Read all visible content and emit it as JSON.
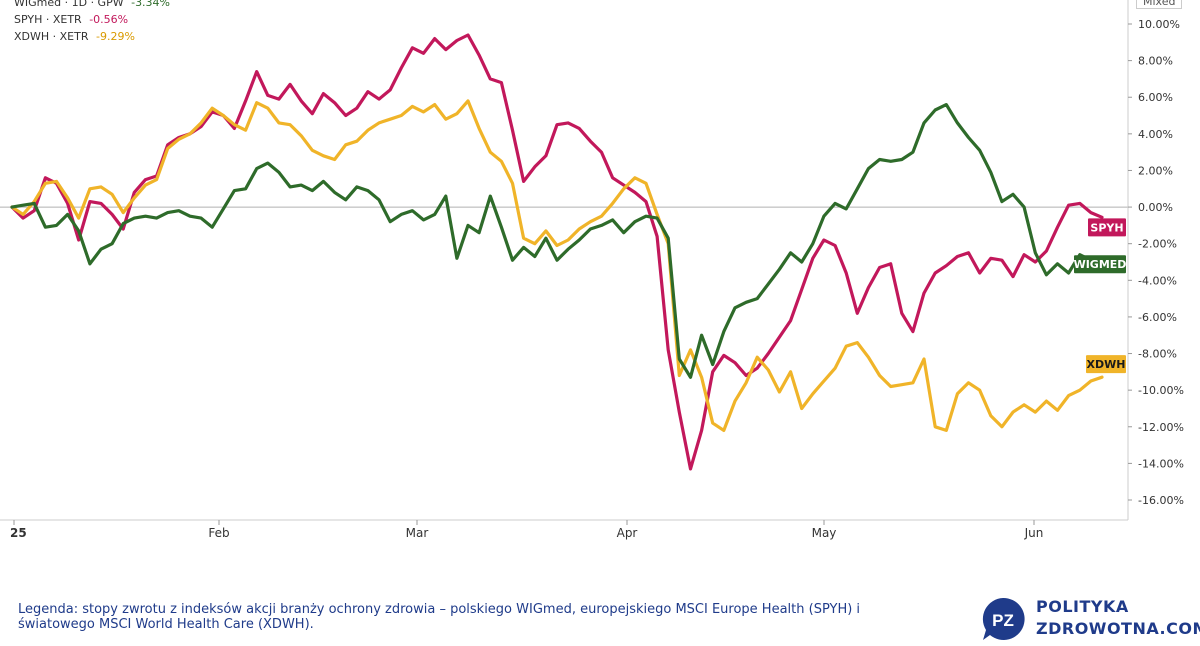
{
  "legend": {
    "items": [
      {
        "name": "WIGmed · 1D · GPW",
        "pct": "-3.34%",
        "color": "#2e6b2a"
      },
      {
        "name": "SPYH · XETR",
        "pct": "-0.56%",
        "color": "#c2185b"
      },
      {
        "name": "XDWH · XETR",
        "pct": "-9.29%",
        "color": "#f0b429"
      }
    ],
    "mode": "Mixed"
  },
  "caption": "Legenda: stopy zwrotu z indeksów akcji branży ochrony zdrowia – polskiego WIGmed, europejskiego MSCI Europe Health (SPYH) i światowego MSCI World Health Care (XDWH).",
  "brand": {
    "logo_text": "PZ",
    "line1": "POLITYKA",
    "line2": "ZDROWOTNA.COM",
    "color": "#1f3b8a"
  },
  "chart_data": {
    "type": "line",
    "title": "",
    "xlabel": "",
    "ylabel": "",
    "x_ticks": [
      "25",
      "Feb",
      "Mar",
      "Apr",
      "May",
      "Jun"
    ],
    "y_ticks": [
      "10.00%",
      "8.00%",
      "6.00%",
      "4.00%",
      "2.00%",
      "0.00%",
      "-2.00%",
      "-4.00%",
      "-6.00%",
      "-8.00%",
      "-10.00%",
      "-12.00%",
      "-14.00%",
      "-16.00%"
    ],
    "ylim": [
      -16,
      10
    ],
    "grid": "zero-line only",
    "series": [
      {
        "name": "SPYH",
        "label": "SPYH",
        "color": "#c2185b",
        "values": [
          0,
          -0.6,
          -0.2,
          1.6,
          1.3,
          0.2,
          -1.8,
          0.3,
          0.2,
          -0.4,
          -1.2,
          0.8,
          1.5,
          1.7,
          3.4,
          3.8,
          4.0,
          4.4,
          5.2,
          5.0,
          4.3,
          5.8,
          7.4,
          6.1,
          5.9,
          6.7,
          5.8,
          5.1,
          6.2,
          5.7,
          5.0,
          5.4,
          6.3,
          5.9,
          6.4,
          7.6,
          8.7,
          8.4,
          9.2,
          8.6,
          9.1,
          9.4,
          8.3,
          7.0,
          6.8,
          4.2,
          1.4,
          2.2,
          2.8,
          4.5,
          4.6,
          4.3,
          3.6,
          3.0,
          1.6,
          1.2,
          0.8,
          0.3,
          -1.6,
          -7.8,
          -11.2,
          -14.3,
          -12.2,
          -9.0,
          -8.1,
          -8.5,
          -9.2,
          -8.8,
          -8.0,
          -7.1,
          -6.2,
          -4.5,
          -2.8,
          -1.8,
          -2.1,
          -3.6,
          -5.8,
          -4.4,
          -3.3,
          -3.1,
          -5.8,
          -6.8,
          -4.7,
          -3.6,
          -3.2,
          -2.7,
          -2.5,
          -3.6,
          -2.8,
          -2.9,
          -3.8,
          -2.6,
          -3.0,
          -2.4,
          -1.1,
          0.1,
          0.2,
          -0.3,
          -0.56
        ]
      },
      {
        "name": "XDWH",
        "label": "XDWH",
        "color": "#f0b429",
        "values": [
          0,
          -0.4,
          0.3,
          1.3,
          1.4,
          0.5,
          -0.6,
          1.0,
          1.1,
          0.7,
          -0.3,
          0.5,
          1.2,
          1.5,
          3.2,
          3.7,
          4.0,
          4.6,
          5.4,
          5.0,
          4.5,
          4.2,
          5.7,
          5.4,
          4.6,
          4.5,
          3.9,
          3.1,
          2.8,
          2.6,
          3.4,
          3.6,
          4.2,
          4.6,
          4.8,
          5.0,
          5.5,
          5.2,
          5.6,
          4.8,
          5.1,
          5.8,
          4.3,
          3.0,
          2.5,
          1.3,
          -1.7,
          -2.0,
          -1.3,
          -2.1,
          -1.8,
          -1.2,
          -0.8,
          -0.5,
          0.2,
          1.0,
          1.6,
          1.3,
          -0.4,
          -2.0,
          -9.2,
          -7.8,
          -9.3,
          -11.8,
          -12.2,
          -10.6,
          -9.6,
          -8.2,
          -8.9,
          -10.1,
          -9.0,
          -11.0,
          -10.2,
          -9.5,
          -8.8,
          -7.6,
          -7.4,
          -8.2,
          -9.2,
          -9.8,
          -9.7,
          -9.6,
          -8.3,
          -12.0,
          -12.2,
          -10.2,
          -9.6,
          -10.0,
          -11.4,
          -12.0,
          -11.2,
          -10.8,
          -11.2,
          -10.6,
          -11.1,
          -10.3,
          -10.0,
          -9.5,
          -9.29
        ]
      },
      {
        "name": "WIGMED",
        "label": "WIGMED",
        "color": "#2e6b2a",
        "values": [
          0,
          0.1,
          0.2,
          -1.1,
          -1.0,
          -0.4,
          -1.3,
          -3.1,
          -2.3,
          -2.0,
          -0.9,
          -0.6,
          -0.5,
          -0.6,
          -0.3,
          -0.2,
          -0.5,
          -0.6,
          -1.1,
          -0.1,
          0.9,
          1.0,
          2.1,
          2.4,
          1.9,
          1.1,
          1.2,
          0.9,
          1.4,
          0.8,
          0.4,
          1.1,
          0.9,
          0.4,
          -0.8,
          -0.4,
          -0.2,
          -0.7,
          -0.4,
          0.6,
          -2.8,
          -1.0,
          -1.4,
          0.6,
          -1.1,
          -2.9,
          -2.2,
          -2.7,
          -1.7,
          -2.9,
          -2.3,
          -1.8,
          -1.2,
          -1.0,
          -0.7,
          -1.4,
          -0.8,
          -0.5,
          -0.6,
          -1.7,
          -8.3,
          -9.3,
          -7.0,
          -8.6,
          -6.8,
          -5.5,
          -5.2,
          -5.0,
          -4.2,
          -3.4,
          -2.5,
          -3.0,
          -2.0,
          -0.5,
          0.2,
          -0.1,
          1.0,
          2.1,
          2.6,
          2.5,
          2.6,
          3.0,
          4.6,
          5.3,
          5.6,
          4.6,
          3.8,
          3.1,
          1.9,
          0.3,
          0.7,
          0.0,
          -2.5,
          -3.7,
          -3.1,
          -3.6,
          -2.6,
          -2.9,
          -3.34
        ]
      }
    ]
  }
}
